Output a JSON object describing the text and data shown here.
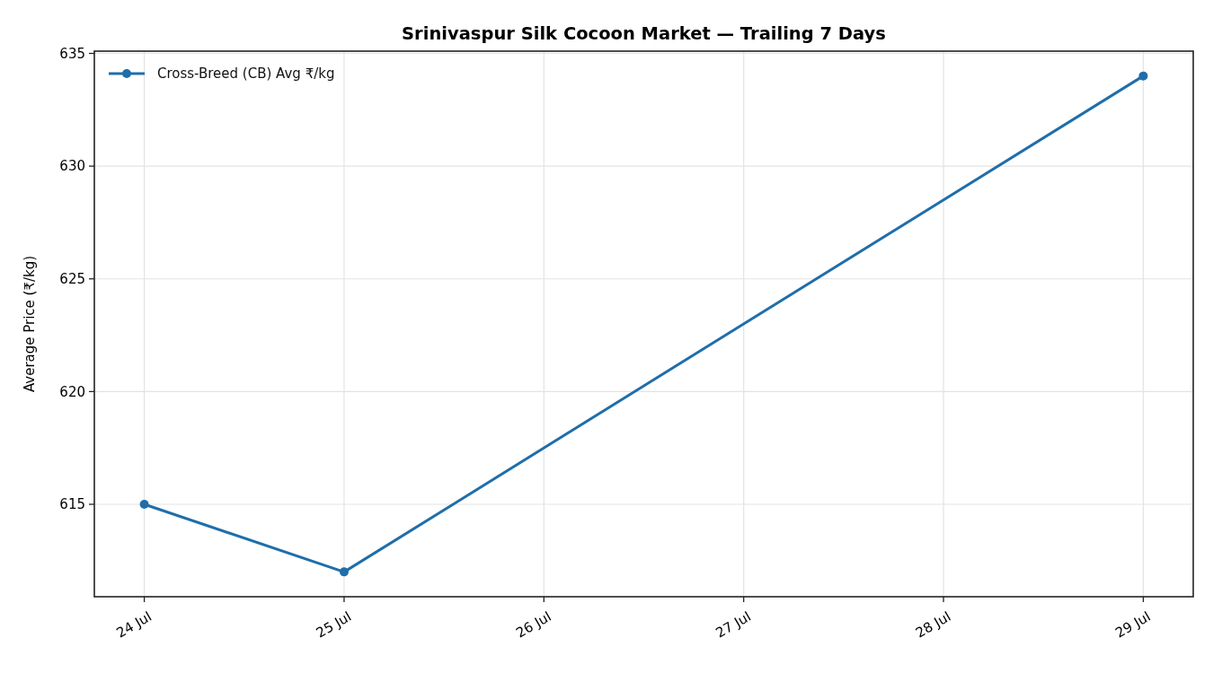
{
  "chart_data": {
    "type": "line",
    "title": "Srinivaspur Silk Cocoon Market — Trailing 7 Days",
    "ylabel": "Average Price (₹/kg)",
    "x": [
      "--07-24",
      "--07-25",
      "--07-29"
    ],
    "series": [
      {
        "name": "Cross-Breed (CB) Avg ₹/kg",
        "color": "#1f6eaa",
        "values": [
          615,
          612,
          634
        ]
      }
    ],
    "xlim": [
      "--07-23T18:00",
      "--07-29T06:00"
    ],
    "xticks": [
      {
        "value": "--07-24",
        "label": "24 Jul"
      },
      {
        "value": "--07-25",
        "label": "25 Jul"
      },
      {
        "value": "--07-26",
        "label": "26 Jul"
      },
      {
        "value": "--07-27",
        "label": "27 Jul"
      },
      {
        "value": "--07-28",
        "label": "28 Jul"
      },
      {
        "value": "--07-29",
        "label": "29 Jul"
      }
    ],
    "ylim": [
      610.9,
      635.1
    ],
    "yticks": [
      615,
      620,
      625,
      630,
      635
    ],
    "grid": true,
    "legend": "top left",
    "marker": "circle",
    "line_style": "solid"
  }
}
